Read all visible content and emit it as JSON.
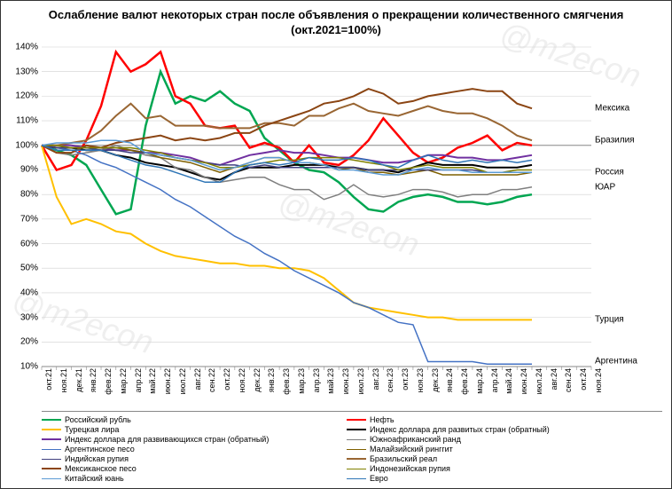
{
  "title": "Ослабление валют некоторых стран после объявления о прекращении количественного смягчения  (окт.2021=100%)",
  "watermark": "@m2econ",
  "background_color": "#ffffff",
  "grid_color": "#d0d0d0",
  "axis_color": "#888888",
  "title_fontsize": 13,
  "label_fontsize": 10,
  "tick_fontsize": 9,
  "ylim": [
    10,
    140
  ],
  "ytick_step": 10,
  "yticks": [
    10,
    20,
    30,
    40,
    50,
    60,
    70,
    80,
    90,
    100,
    110,
    120,
    130,
    140
  ],
  "x_categories": [
    "окт.21",
    "ноя.21",
    "дек.21",
    "янв.22",
    "фев.22",
    "мар.22",
    "апр.22",
    "май.22",
    "июн.22",
    "июл.22",
    "авг.22",
    "сен.22",
    "окт.22",
    "ноя.22",
    "дек.22",
    "янв.23",
    "фев.23",
    "мар.23",
    "апр.23",
    "май.23",
    "июн.23",
    "июл.23",
    "авг.23",
    "сен.23",
    "окт.23",
    "ноя.23",
    "дек.23",
    "янв.24",
    "фев.24",
    "мар.24",
    "апр.24",
    "май.24",
    "июн.24",
    "июл.24",
    "авг.24",
    "сен.24",
    "окт.24",
    "ноя.24"
  ],
  "series": [
    {
      "name": "Российский рубль",
      "color": "#00a651",
      "width": 2.5,
      "values": [
        100,
        98,
        96,
        92,
        82,
        72,
        74,
        108,
        130,
        117,
        120,
        118,
        122,
        117,
        114,
        103,
        98,
        93,
        90,
        89,
        85,
        79,
        74,
        73,
        77,
        79,
        80,
        79,
        77,
        77,
        76,
        77,
        79,
        80
      ]
    },
    {
      "name": "Нефть",
      "color": "#ff0000",
      "width": 2.5,
      "values": [
        100,
        90,
        92,
        102,
        116,
        138,
        130,
        133,
        138,
        120,
        117,
        108,
        107,
        108,
        99,
        101,
        99,
        93,
        100,
        93,
        92,
        96,
        102,
        111,
        104,
        97,
        93,
        95,
        99,
        101,
        104,
        98,
        101,
        100
      ]
    },
    {
      "name": "Турецкая лира",
      "color": "#ffc000",
      "width": 2,
      "values": [
        100,
        79,
        68,
        70,
        68,
        65,
        64,
        60,
        57,
        55,
        54,
        53,
        52,
        52,
        51,
        51,
        50,
        50,
        49,
        46,
        41,
        36,
        34,
        33,
        32,
        31,
        30,
        30,
        29,
        29,
        29,
        29,
        29,
        29
      ]
    },
    {
      "name": "Индекс доллара для развитых стран (обратный)",
      "color": "#000000",
      "width": 2,
      "values": [
        100,
        99,
        99,
        98,
        98,
        96,
        95,
        93,
        92,
        91,
        89,
        87,
        86,
        89,
        91,
        91,
        91,
        92,
        92,
        92,
        91,
        91,
        90,
        90,
        89,
        91,
        93,
        92,
        92,
        92,
        91,
        91,
        91,
        92
      ]
    },
    {
      "name": "Индекс доллара для развивающихся стран (обратный)",
      "color": "#7030a0",
      "width": 2,
      "values": [
        100,
        100,
        100,
        99,
        99,
        98,
        98,
        97,
        97,
        96,
        95,
        93,
        92,
        94,
        96,
        97,
        98,
        97,
        97,
        96,
        95,
        95,
        94,
        93,
        93,
        94,
        96,
        96,
        95,
        95,
        94,
        94,
        95,
        96
      ]
    },
    {
      "name": "Южноафриканский ранд",
      "color": "#7f7f7f",
      "width": 1.5,
      "values": [
        100,
        97,
        96,
        97,
        98,
        100,
        98,
        96,
        95,
        91,
        90,
        87,
        85,
        86,
        87,
        87,
        84,
        82,
        82,
        78,
        80,
        84,
        80,
        79,
        80,
        82,
        82,
        81,
        79,
        80,
        80,
        82,
        82,
        83
      ]
    },
    {
      "name": "Аргентинское песо",
      "color": "#4472c4",
      "width": 1.5,
      "values": [
        100,
        99,
        98,
        96,
        93,
        91,
        88,
        85,
        82,
        78,
        75,
        71,
        67,
        63,
        60,
        56,
        53,
        49,
        46,
        43,
        40,
        36,
        34,
        31,
        28,
        27,
        12,
        12,
        12,
        12,
        11,
        11,
        11,
        11
      ]
    },
    {
      "name": "Малайзийский ринггит",
      "color": "#7f6000",
      "width": 1.5,
      "values": [
        100,
        99,
        99,
        99,
        99,
        99,
        98,
        97,
        95,
        94,
        93,
        91,
        89,
        91,
        93,
        95,
        95,
        93,
        93,
        92,
        90,
        91,
        89,
        89,
        88,
        89,
        90,
        88,
        88,
        88,
        88,
        88,
        88,
        89
      ]
    },
    {
      "name": "Индийская рупия",
      "color": "#404080",
      "width": 1.5,
      "values": [
        100,
        99,
        99,
        99,
        98,
        98,
        97,
        97,
        96,
        95,
        94,
        93,
        92,
        92,
        91,
        92,
        91,
        91,
        91,
        91,
        91,
        91,
        90,
        90,
        90,
        90,
        90,
        90,
        90,
        90,
        89,
        89,
        89,
        89
      ]
    },
    {
      "name": "Бразильский реал",
      "color": "#996633",
      "width": 2,
      "values": [
        100,
        100,
        101,
        102,
        106,
        112,
        117,
        111,
        112,
        108,
        108,
        108,
        107,
        107,
        107,
        109,
        109,
        108,
        112,
        112,
        115,
        117,
        114,
        113,
        112,
        114,
        116,
        114,
        113,
        113,
        111,
        108,
        104,
        102
      ]
    },
    {
      "name": "Мексиканское песо",
      "color": "#8b4513",
      "width": 2,
      "values": [
        100,
        97,
        97,
        100,
        99,
        101,
        102,
        103,
        104,
        102,
        103,
        102,
        103,
        105,
        105,
        108,
        110,
        112,
        114,
        117,
        118,
        120,
        123,
        121,
        117,
        118,
        120,
        121,
        122,
        123,
        122,
        122,
        117,
        115
      ]
    },
    {
      "name": "Индонезийская рупия",
      "color": "#808000",
      "width": 1.5,
      "values": [
        100,
        100,
        99,
        99,
        99,
        99,
        99,
        98,
        97,
        95,
        94,
        93,
        91,
        91,
        92,
        93,
        94,
        94,
        95,
        95,
        95,
        94,
        93,
        92,
        90,
        91,
        92,
        91,
        91,
        91,
        89,
        89,
        90,
        90
      ]
    },
    {
      "name": "Китайский юань",
      "color": "#5b9bd5",
      "width": 1.5,
      "values": [
        100,
        101,
        101,
        101,
        102,
        102,
        101,
        97,
        96,
        95,
        94,
        92,
        90,
        91,
        93,
        95,
        95,
        93,
        93,
        92,
        90,
        90,
        89,
        88,
        88,
        90,
        91,
        90,
        90,
        89,
        89,
        89,
        89,
        89
      ]
    },
    {
      "name": "Евро",
      "color": "#2e75b6",
      "width": 1.5,
      "values": [
        100,
        98,
        98,
        98,
        98,
        96,
        94,
        92,
        91,
        89,
        87,
        85,
        85,
        89,
        92,
        93,
        92,
        93,
        95,
        94,
        94,
        95,
        94,
        92,
        91,
        94,
        96,
        94,
        93,
        94,
        93,
        94,
        93,
        94
      ]
    }
  ],
  "end_labels": [
    {
      "text": "Мексика",
      "y": 115,
      "color": "#000"
    },
    {
      "text": "Бразилия",
      "y": 102,
      "color": "#000"
    },
    {
      "text": "Россия",
      "y": 89,
      "color": "#000"
    },
    {
      "text": "ЮАР",
      "y": 83,
      "color": "#000"
    },
    {
      "text": "Турция",
      "y": 29,
      "color": "#000"
    },
    {
      "text": "Аргентина",
      "y": 12,
      "color": "#000"
    }
  ],
  "end_lines": [
    {
      "from_y": 115,
      "to_y": 115,
      "color": "#888"
    },
    {
      "from_y": 102,
      "to_y": 102,
      "color": "#888"
    }
  ],
  "legend_layout": [
    [
      0,
      1
    ],
    [
      2,
      3
    ],
    [
      4,
      5
    ],
    [
      6,
      7
    ],
    [
      8,
      9
    ],
    [
      10,
      11
    ],
    [
      12,
      13
    ]
  ]
}
